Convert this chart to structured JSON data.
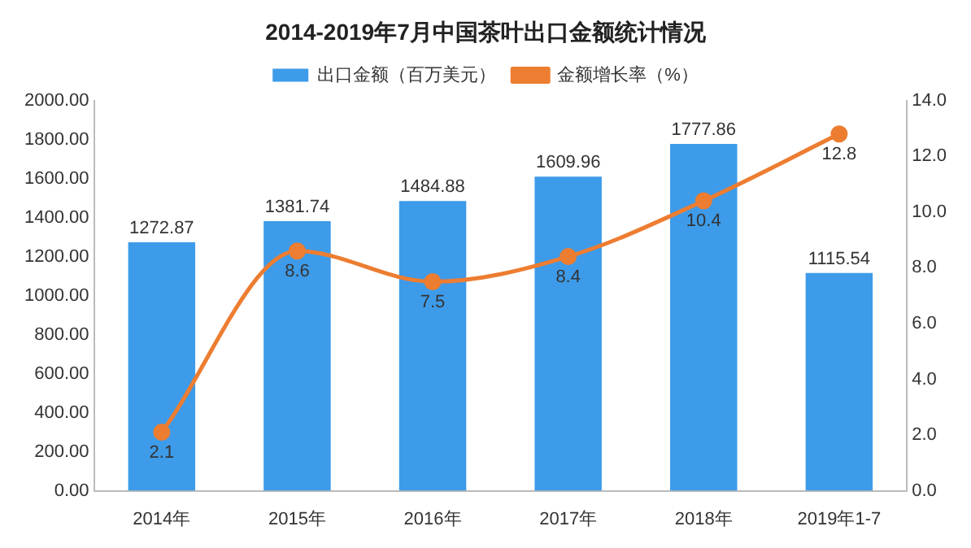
{
  "chart_data": {
    "type": "bar",
    "title": "2014-2019年7月中国茶叶出口金额统计情况",
    "categories": [
      "2014年",
      "2015年",
      "2016年",
      "2017年",
      "2018年",
      "2019年1-7"
    ],
    "series": [
      {
        "name": "出口金额（百万美元）",
        "color": "#3d9be9",
        "values": [
          1272.87,
          1381.74,
          1484.88,
          1609.96,
          1777.86,
          1115.54
        ]
      },
      {
        "name": "金额增长率（%）",
        "type": "line",
        "axis": "y2",
        "color": "#ed7d31",
        "values": [
          2.1,
          8.6,
          7.5,
          8.4,
          10.4,
          12.8
        ]
      }
    ],
    "ylim": [
      0,
      2000
    ],
    "yticks": [
      {
        "value": 0,
        "label": "0.00"
      },
      {
        "value": 200,
        "label": "200.00"
      },
      {
        "value": 400,
        "label": "400.00"
      },
      {
        "value": 600,
        "label": "600.00"
      },
      {
        "value": 800,
        "label": "800.00"
      },
      {
        "value": 1000,
        "label": "1000.00"
      },
      {
        "value": 1200,
        "label": "1200.00"
      },
      {
        "value": 1400,
        "label": "1400.00"
      },
      {
        "value": 1600,
        "label": "1600.00"
      },
      {
        "value": 1800,
        "label": "1800.00"
      },
      {
        "value": 2000,
        "label": "2000.00"
      }
    ],
    "y2lim": [
      0,
      14
    ],
    "y2ticks": [
      {
        "value": 0,
        "label": "0.0"
      },
      {
        "value": 2,
        "label": "2.0"
      },
      {
        "value": 4,
        "label": "4.0"
      },
      {
        "value": 6,
        "label": "6.0"
      },
      {
        "value": 8,
        "label": "8.0"
      },
      {
        "value": 10,
        "label": "10.0"
      },
      {
        "value": 12,
        "label": "12.0"
      },
      {
        "value": 14,
        "label": "14.0"
      }
    ],
    "grid": false,
    "legend": "top",
    "marker": "circle",
    "line_style": "solid",
    "data_labels": true
  }
}
